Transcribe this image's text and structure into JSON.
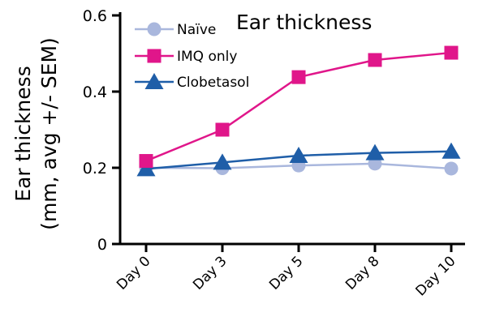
{
  "chart_data": {
    "type": "line",
    "title": "Ear thickness",
    "xlabel": "",
    "ylabel": [
      "Ear thickness",
      "(mm, avg +/- SEM)"
    ],
    "categories": [
      "Day 0",
      "Day 3",
      "Day 5",
      "Day 8",
      "Day 10"
    ],
    "ylim": [
      0,
      0.6
    ],
    "yticks": [
      0,
      0.2,
      0.4,
      0.6
    ],
    "ytick_labels": [
      "0",
      "0.2",
      "0.4",
      "0.6"
    ],
    "grid": false,
    "legend_position": "top-left",
    "series": [
      {
        "name": "Naïve",
        "marker": "circle",
        "color": "#a9b7dd",
        "values": [
          0.2,
          0.199,
          0.206,
          0.211,
          0.198
        ]
      },
      {
        "name": "IMQ only",
        "marker": "square",
        "color": "#e0168a",
        "values": [
          0.218,
          0.3,
          0.438,
          0.483,
          0.502
        ]
      },
      {
        "name": "Clobetasol",
        "marker": "triangle",
        "color": "#1f5ea8",
        "values": [
          0.197,
          0.214,
          0.232,
          0.239,
          0.243
        ]
      }
    ]
  }
}
